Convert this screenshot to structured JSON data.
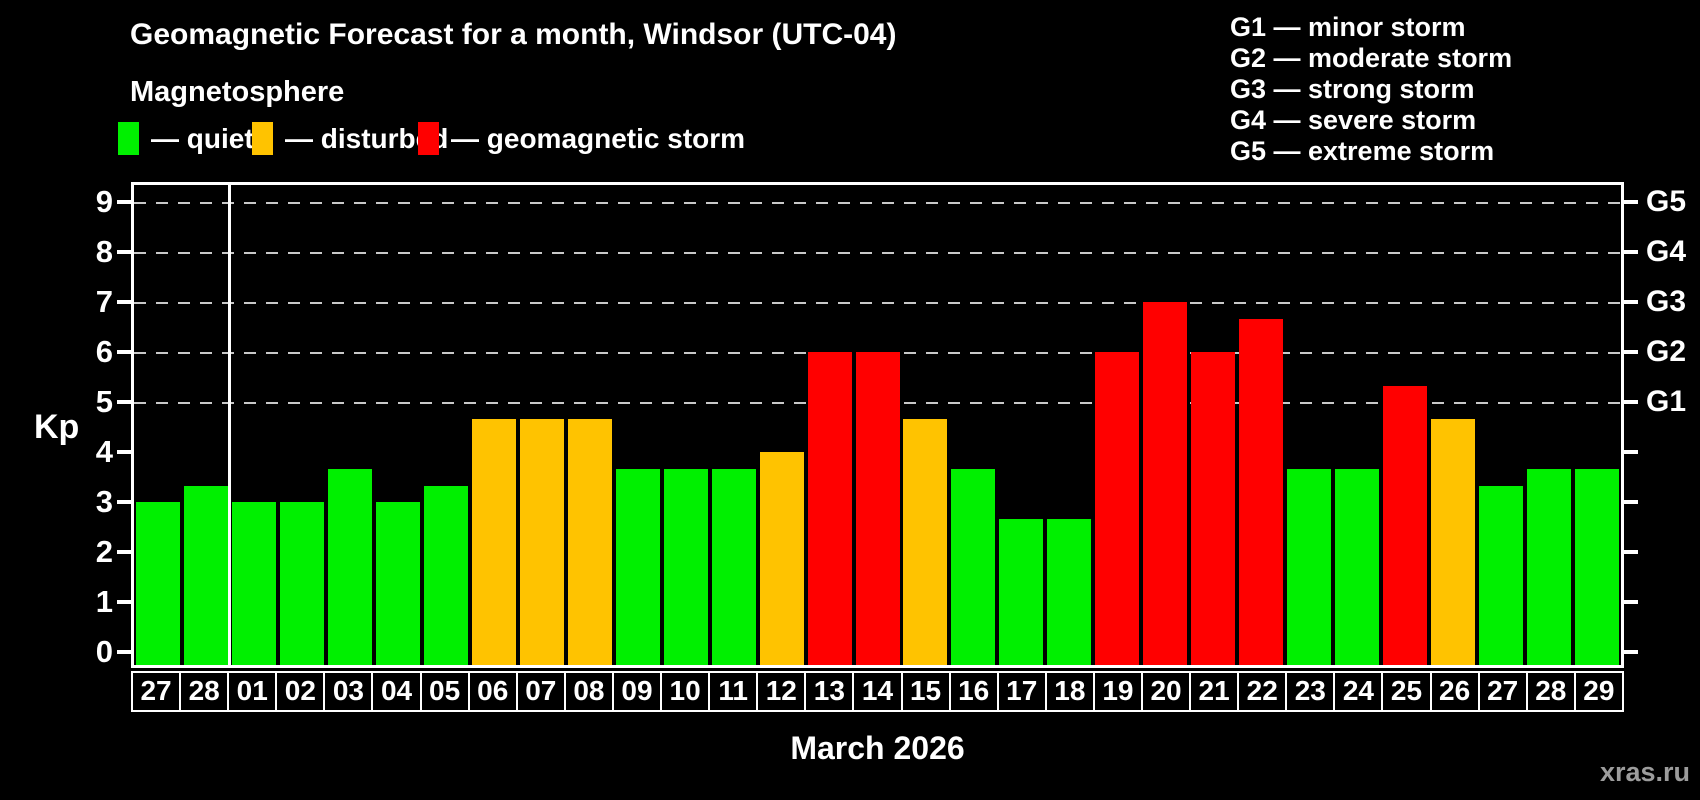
{
  "title": "Geomagnetic Forecast for a month, Windsor (UTC-04)",
  "subtitle": "Magnetosphere",
  "legend": [
    {
      "key": "quiet",
      "label": "— quiet",
      "color": "#00f000"
    },
    {
      "key": "disturbed",
      "label": "— disturbed",
      "color": "#ffc300"
    },
    {
      "key": "storm",
      "label": "— geomagnetic storm",
      "color": "#ff0000"
    }
  ],
  "storm_scale": [
    {
      "code": "G1",
      "text": "G1 — minor storm"
    },
    {
      "code": "G2",
      "text": "G2 — moderate storm"
    },
    {
      "code": "G3",
      "text": "G3 — strong storm"
    },
    {
      "code": "G4",
      "text": "G4 — severe storm"
    },
    {
      "code": "G5",
      "text": "G5 — extreme storm"
    }
  ],
  "watermark": "xras.ru",
  "chart_data": {
    "type": "bar",
    "title": "Geomagnetic Forecast for a month, Windsor (UTC-04)",
    "xlabel": "March 2026",
    "ylabel": "Kp",
    "ylim": [
      0,
      9
    ],
    "yticks": [
      0,
      1,
      2,
      3,
      4,
      5,
      6,
      7,
      8,
      9
    ],
    "gridlines_at": [
      5,
      6,
      7,
      8,
      9
    ],
    "grid": "dashed, horizontal, at storm levels only",
    "legend_position": "above chart",
    "right_axis": [
      {
        "label": "G1",
        "kp": 5
      },
      {
        "label": "G2",
        "kp": 6
      },
      {
        "label": "G3",
        "kp": 7
      },
      {
        "label": "G4",
        "kp": 8
      },
      {
        "label": "G5",
        "kp": 9
      }
    ],
    "categories": [
      "27",
      "28",
      "01",
      "02",
      "03",
      "04",
      "05",
      "06",
      "07",
      "08",
      "09",
      "10",
      "11",
      "12",
      "13",
      "14",
      "15",
      "16",
      "17",
      "18",
      "19",
      "20",
      "21",
      "22",
      "23",
      "24",
      "25",
      "26",
      "27",
      "28",
      "29"
    ],
    "values": [
      3.0,
      3.33,
      3.0,
      3.0,
      3.67,
      3.0,
      3.33,
      4.67,
      4.67,
      4.67,
      3.67,
      3.67,
      3.67,
      4.0,
      6.0,
      6.0,
      4.67,
      3.67,
      2.67,
      2.67,
      6.0,
      7.0,
      6.0,
      6.67,
      3.67,
      3.67,
      5.33,
      4.67,
      3.33,
      3.67,
      3.67
    ],
    "states": [
      "quiet",
      "quiet",
      "quiet",
      "quiet",
      "quiet",
      "quiet",
      "quiet",
      "disturbed",
      "disturbed",
      "disturbed",
      "quiet",
      "quiet",
      "quiet",
      "disturbed",
      "storm",
      "storm",
      "disturbed",
      "quiet",
      "quiet",
      "quiet",
      "storm",
      "storm",
      "storm",
      "storm",
      "quiet",
      "quiet",
      "storm",
      "disturbed",
      "quiet",
      "quiet",
      "quiet"
    ],
    "colors": {
      "quiet": "#00f000",
      "disturbed": "#ffc300",
      "storm": "#ff0000"
    }
  }
}
